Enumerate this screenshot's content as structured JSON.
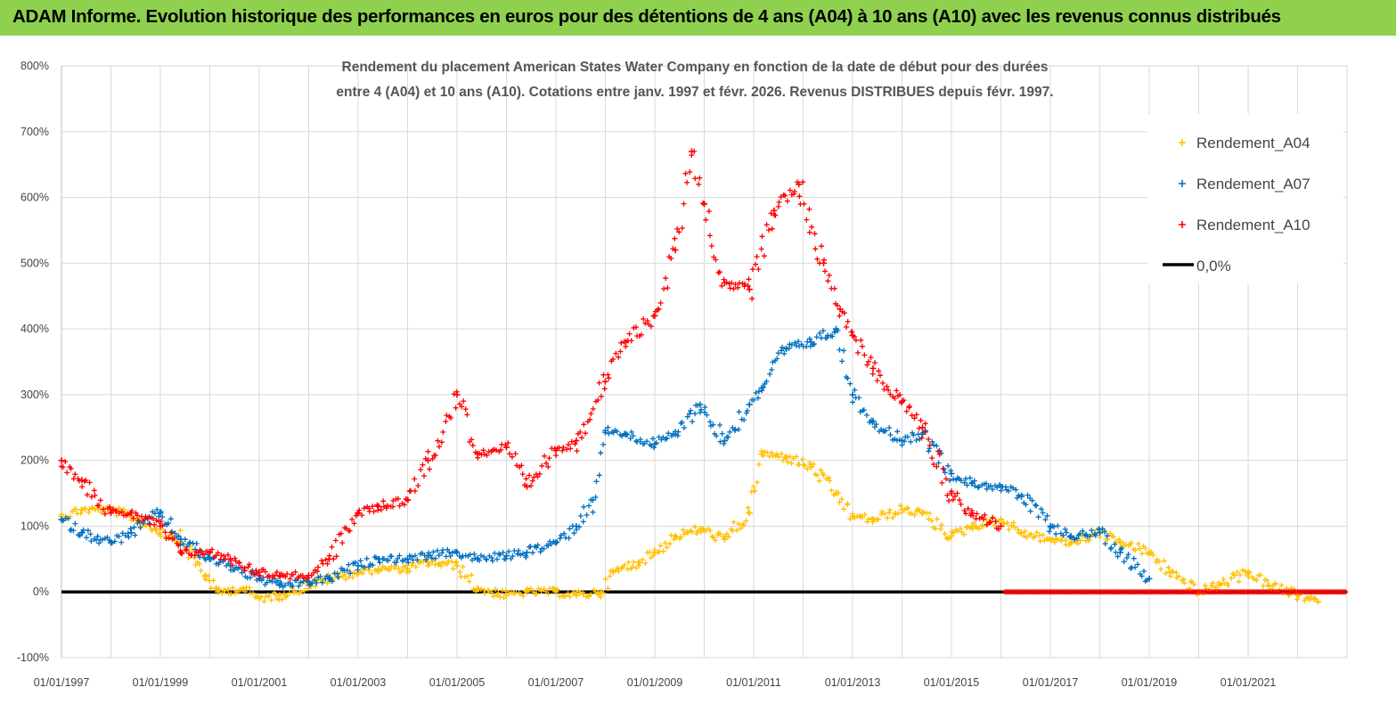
{
  "banner": {
    "title": "ADAM Informe. Evolution historique des performances en euros pour des détentions de 4 ans (A04) à 10 ans (A10) avec les revenus connus distribués"
  },
  "colors": {
    "banner": "#8fd14f",
    "A04": "#ffc000",
    "A07": "#0070c0",
    "A10": "#ff0000",
    "zero": "#000000"
  },
  "chart_data": {
    "type": "scatter",
    "title_lines": [
      "Rendement du placement American States Water Company en fonction de la date de début pour des durées",
      "entre 4 (A04) et 10 ans (A10). Cotations entre janv. 1997 et févr. 2026. Revenus DISTRIBUES depuis févr. 1997."
    ],
    "xlabel": "",
    "ylabel": "",
    "xlim": [
      "1997-01-01",
      "2023-01-01"
    ],
    "ylim": [
      -100,
      800
    ],
    "y_ticks": [
      "-100%",
      "0%",
      "100%",
      "200%",
      "300%",
      "400%",
      "500%",
      "600%",
      "700%",
      "800%"
    ],
    "x_ticks": [
      "01/01/1997",
      "01/01/1999",
      "01/01/2001",
      "01/01/2003",
      "01/01/2005",
      "01/01/2007",
      "01/01/2009",
      "01/01/2011",
      "01/01/2013",
      "01/01/2015",
      "01/01/2017",
      "01/01/2019",
      "01/01/2021"
    ],
    "grid": true,
    "legend_position": "right",
    "series": [
      {
        "name": "Rendement_A04",
        "marker": "+",
        "points": [
          [
            "1997-01-01",
            115
          ],
          [
            "1997-06-01",
            125
          ],
          [
            "1998-01-01",
            125
          ],
          [
            "1998-06-01",
            115
          ],
          [
            "1998-12-01",
            95
          ],
          [
            "1999-06-01",
            80
          ],
          [
            "1999-12-01",
            25
          ],
          [
            "2000-03-01",
            0
          ],
          [
            "2000-09-01",
            5
          ],
          [
            "2001-01-01",
            -10
          ],
          [
            "2001-06-01",
            -5
          ],
          [
            "2002-01-01",
            10
          ],
          [
            "2002-06-01",
            20
          ],
          [
            "2003-01-01",
            30
          ],
          [
            "2003-06-01",
            35
          ],
          [
            "2004-01-01",
            35
          ],
          [
            "2004-06-01",
            45
          ],
          [
            "2005-01-01",
            40
          ],
          [
            "2005-06-01",
            5
          ],
          [
            "2006-01-01",
            -5
          ],
          [
            "2006-06-01",
            0
          ],
          [
            "2007-01-01",
            0
          ],
          [
            "2007-06-01",
            -5
          ],
          [
            "2007-12-01",
            0
          ],
          [
            "2008-03-01",
            30
          ],
          [
            "2008-09-01",
            45
          ],
          [
            "2009-01-01",
            60
          ],
          [
            "2009-06-01",
            85
          ],
          [
            "2009-12-01",
            95
          ],
          [
            "2010-06-01",
            80
          ],
          [
            "2010-12-01",
            120
          ],
          [
            "2011-03-01",
            210
          ],
          [
            "2011-09-01",
            205
          ],
          [
            "2012-03-01",
            190
          ],
          [
            "2012-09-01",
            150
          ],
          [
            "2013-01-01",
            115
          ],
          [
            "2013-06-01",
            110
          ],
          [
            "2014-01-01",
            125
          ],
          [
            "2014-06-01",
            120
          ],
          [
            "2015-01-01",
            85
          ],
          [
            "2015-06-01",
            100
          ],
          [
            "2016-01-01",
            110
          ],
          [
            "2016-06-01",
            90
          ],
          [
            "2017-01-01",
            80
          ],
          [
            "2017-06-01",
            75
          ],
          [
            "2018-01-01",
            90
          ],
          [
            "2018-06-01",
            75
          ],
          [
            "2019-01-01",
            60
          ],
          [
            "2019-06-01",
            30
          ],
          [
            "2020-01-01",
            0
          ],
          [
            "2020-06-01",
            10
          ],
          [
            "2021-01-01",
            30
          ],
          [
            "2021-06-01",
            10
          ],
          [
            "2022-01-01",
            -5
          ],
          [
            "2022-06-01",
            -15
          ]
        ]
      },
      {
        "name": "Rendement_A07",
        "marker": "+",
        "points": [
          [
            "1997-01-01",
            110
          ],
          [
            "1997-06-01",
            90
          ],
          [
            "1998-01-01",
            75
          ],
          [
            "1998-06-01",
            90
          ],
          [
            "1999-01-01",
            120
          ],
          [
            "1999-06-01",
            80
          ],
          [
            "2000-01-01",
            50
          ],
          [
            "2000-06-01",
            40
          ],
          [
            "2001-01-01",
            20
          ],
          [
            "2001-06-01",
            10
          ],
          [
            "2002-01-01",
            15
          ],
          [
            "2002-06-01",
            20
          ],
          [
            "2003-01-01",
            40
          ],
          [
            "2003-06-01",
            50
          ],
          [
            "2004-01-01",
            50
          ],
          [
            "2004-06-01",
            55
          ],
          [
            "2005-01-01",
            60
          ],
          [
            "2005-06-01",
            50
          ],
          [
            "2006-01-01",
            55
          ],
          [
            "2006-06-01",
            60
          ],
          [
            "2007-01-01",
            75
          ],
          [
            "2007-06-01",
            100
          ],
          [
            "2007-10-01",
            140
          ],
          [
            "2008-01-01",
            245
          ],
          [
            "2008-06-01",
            240
          ],
          [
            "2009-01-01",
            225
          ],
          [
            "2009-06-01",
            240
          ],
          [
            "2009-12-01",
            285
          ],
          [
            "2010-06-01",
            230
          ],
          [
            "2010-12-01",
            285
          ],
          [
            "2011-03-01",
            310
          ],
          [
            "2011-09-01",
            370
          ],
          [
            "2012-03-01",
            380
          ],
          [
            "2012-09-01",
            400
          ],
          [
            "2013-01-01",
            300
          ],
          [
            "2013-06-01",
            260
          ],
          [
            "2014-01-01",
            230
          ],
          [
            "2014-06-01",
            240
          ],
          [
            "2015-01-01",
            180
          ],
          [
            "2015-06-01",
            165
          ],
          [
            "2016-01-01",
            160
          ],
          [
            "2016-06-01",
            145
          ],
          [
            "2017-01-01",
            100
          ],
          [
            "2017-06-01",
            85
          ],
          [
            "2018-01-01",
            90
          ],
          [
            "2018-06-01",
            60
          ],
          [
            "2019-01-01",
            20
          ]
        ]
      },
      {
        "name": "Rendement_A10",
        "marker": "+",
        "points": [
          [
            "1997-01-01",
            200
          ],
          [
            "1997-06-01",
            170
          ],
          [
            "1998-01-01",
            120
          ],
          [
            "1998-06-01",
            120
          ],
          [
            "1999-01-01",
            100
          ],
          [
            "1999-06-01",
            60
          ],
          [
            "2000-01-01",
            60
          ],
          [
            "2000-06-01",
            50
          ],
          [
            "2001-01-01",
            30
          ],
          [
            "2001-06-01",
            25
          ],
          [
            "2002-01-01",
            25
          ],
          [
            "2002-06-01",
            50
          ],
          [
            "2003-01-01",
            120
          ],
          [
            "2003-06-01",
            130
          ],
          [
            "2004-01-01",
            140
          ],
          [
            "2004-06-01",
            200
          ],
          [
            "2005-01-01",
            300
          ],
          [
            "2005-06-01",
            210
          ],
          [
            "2006-01-01",
            220
          ],
          [
            "2006-06-01",
            160
          ],
          [
            "2007-01-01",
            215
          ],
          [
            "2007-06-01",
            230
          ],
          [
            "2008-01-01",
            320
          ],
          [
            "2008-06-01",
            380
          ],
          [
            "2009-01-01",
            420
          ],
          [
            "2009-06-01",
            520
          ],
          [
            "2009-10-01",
            670
          ],
          [
            "2010-01-01",
            590
          ],
          [
            "2010-06-01",
            470
          ],
          [
            "2010-12-01",
            460
          ],
          [
            "2011-06-01",
            580
          ],
          [
            "2011-12-01",
            620
          ],
          [
            "2012-06-01",
            500
          ],
          [
            "2012-10-01",
            430
          ],
          [
            "2013-01-01",
            390
          ],
          [
            "2013-06-01",
            340
          ],
          [
            "2014-01-01",
            290
          ],
          [
            "2014-06-01",
            250
          ],
          [
            "2015-01-01",
            150
          ],
          [
            "2015-06-01",
            120
          ],
          [
            "2016-01-01",
            100
          ]
        ]
      },
      {
        "name": "0,0%",
        "marker": "line",
        "points": [
          [
            "1997-01-01",
            0
          ],
          [
            "2023-01-01",
            0
          ]
        ]
      }
    ]
  }
}
